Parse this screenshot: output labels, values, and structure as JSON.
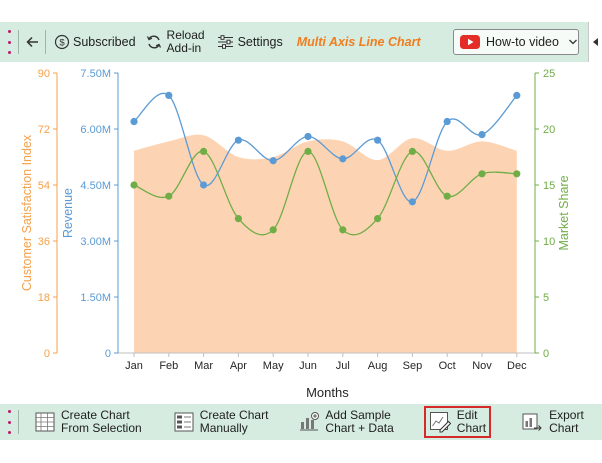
{
  "top_toolbar": {
    "subscribed_label": "Subscribed",
    "reload_line1": "Reload",
    "reload_line2": "Add-in",
    "settings_label": "Settings",
    "chart_title": "Multi Axis Line Chart",
    "howto_label": "How-to video"
  },
  "bottom_toolbar": {
    "create_from_selection_line1": "Create Chart",
    "create_from_selection_line2": "From Selection",
    "create_manually_line1": "Create Chart",
    "create_manually_line2": "Manually",
    "add_sample_line1": "Add Sample",
    "add_sample_line2": "Chart + Data",
    "edit_chart_line1": "Edit",
    "edit_chart_line2": "Chart",
    "export_chart_line1": "Export",
    "export_chart_line2": "Chart"
  },
  "colors": {
    "toolbar_bg": "#d6ece0",
    "area": "#fdd4b3",
    "revenue": "#5b9bd5",
    "market_share": "#70ad47",
    "csi_axis": "#f4a14a",
    "title_accent": "#f07d1f",
    "youtube": "#e52d27",
    "highlight_border": "#d42a2a"
  },
  "chart_data": {
    "type": "line",
    "categories": [
      "Jan",
      "Feb",
      "Mar",
      "Apr",
      "May",
      "Jun",
      "Jul",
      "Aug",
      "Sep",
      "Oct",
      "Nov",
      "Dec"
    ],
    "xlabel": "Months",
    "series": [
      {
        "name": "Customer Satisfaction Index",
        "kind": "area",
        "axis": "left-outer",
        "values": [
          65,
          68,
          70,
          63,
          63,
          68,
          68,
          62,
          69,
          65,
          68,
          65
        ]
      },
      {
        "name": "Revenue",
        "kind": "line",
        "axis": "left-inner",
        "values": [
          6200000,
          6900000,
          4500000,
          5700000,
          5150000,
          5800000,
          5200000,
          5700000,
          4050000,
          6200000,
          5850000,
          6900000
        ]
      },
      {
        "name": "Market Share",
        "kind": "line",
        "axis": "right",
        "values": [
          15,
          14,
          18,
          12,
          11,
          18,
          11,
          12,
          18,
          14,
          16,
          16
        ]
      }
    ],
    "axes": {
      "left_outer": {
        "label": "Customer Satisfaction Index",
        "range": [
          0,
          90
        ],
        "ticks": [
          "0",
          "18",
          "36",
          "54",
          "72",
          "90"
        ]
      },
      "left_inner": {
        "label": "Revenue",
        "range": [
          0,
          7500000
        ],
        "ticks": [
          "0",
          "1.50M",
          "3.00M",
          "4.50M",
          "6.00M",
          "7.50M"
        ]
      },
      "right": {
        "label": "Market Share",
        "range": [
          0,
          25
        ],
        "ticks": [
          "0",
          "5",
          "10",
          "15",
          "20",
          "25"
        ]
      }
    },
    "grid": false,
    "legend": "none"
  }
}
